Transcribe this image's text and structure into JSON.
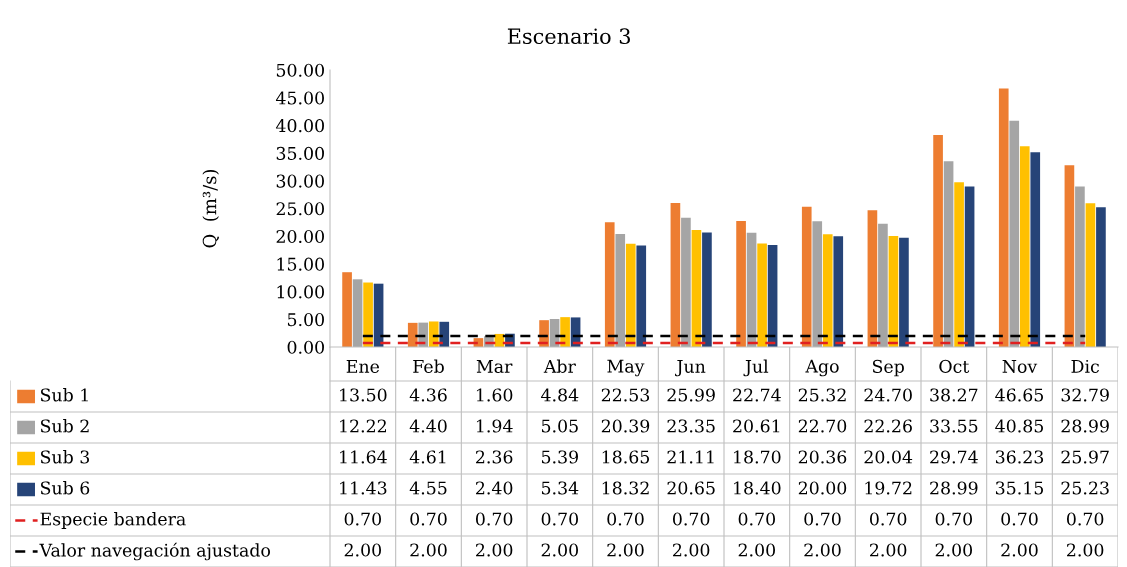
{
  "chart_data": {
    "type": "bar",
    "title": "Escenario 3",
    "ylabel": "Q  (m³/s)",
    "categories": [
      "Ene",
      "Feb",
      "Mar",
      "Abr",
      "May",
      "Jun",
      "Jul",
      "Ago",
      "Sep",
      "Oct",
      "Nov",
      "Dic"
    ],
    "series": [
      {
        "name": "Sub 1",
        "color": "#ed7d31",
        "values": [
          13.5,
          4.36,
          1.6,
          4.84,
          22.53,
          25.99,
          22.74,
          25.32,
          24.7,
          38.27,
          46.65,
          32.79
        ],
        "value_labels": [
          "13.50",
          "4.36",
          "1.60",
          "4.84",
          "22.53",
          "25.99",
          "22.74",
          "25.32",
          "24.70",
          "38.27",
          "46.65",
          "32.79"
        ]
      },
      {
        "name": "Sub 2",
        "color": "#a5a5a5",
        "values": [
          12.22,
          4.4,
          1.94,
          5.05,
          20.39,
          23.35,
          20.61,
          22.7,
          22.26,
          33.55,
          40.85,
          28.99
        ],
        "value_labels": [
          "12.22",
          "4.40",
          "1.94",
          "5.05",
          "20.39",
          "23.35",
          "20.61",
          "22.70",
          "22.26",
          "33.55",
          "40.85",
          "28.99"
        ]
      },
      {
        "name": "Sub 3",
        "color": "#ffc000",
        "values": [
          11.64,
          4.61,
          2.36,
          5.39,
          18.65,
          21.11,
          18.7,
          20.36,
          20.04,
          29.74,
          36.23,
          25.97
        ],
        "value_labels": [
          "11.64",
          "4.61",
          "2.36",
          "5.39",
          "18.65",
          "21.11",
          "18.70",
          "20.36",
          "20.04",
          "29.74",
          "36.23",
          "25.97"
        ]
      },
      {
        "name": "Sub 6",
        "color": "#264478",
        "values": [
          11.43,
          4.55,
          2.4,
          5.34,
          18.32,
          20.65,
          18.4,
          20.0,
          19.72,
          28.99,
          35.15,
          25.23
        ],
        "value_labels": [
          "11.43",
          "4.55",
          "2.40",
          "5.34",
          "18.32",
          "20.65",
          "18.40",
          "20.00",
          "19.72",
          "28.99",
          "35.15",
          "25.23"
        ]
      },
      {
        "name": "Especie bandera",
        "type": "line",
        "line_style": "dashed",
        "color": "#e02020",
        "values": [
          0.7,
          0.7,
          0.7,
          0.7,
          0.7,
          0.7,
          0.7,
          0.7,
          0.7,
          0.7,
          0.7,
          0.7
        ],
        "value_labels": [
          "0.70",
          "0.70",
          "0.70",
          "0.70",
          "0.70",
          "0.70",
          "0.70",
          "0.70",
          "0.70",
          "0.70",
          "0.70",
          "0.70"
        ]
      },
      {
        "name": "Valor navegación ajustado",
        "type": "line",
        "line_style": "dashed",
        "color": "#000000",
        "values": [
          2.0,
          2.0,
          2.0,
          2.0,
          2.0,
          2.0,
          2.0,
          2.0,
          2.0,
          2.0,
          2.0,
          2.0
        ],
        "value_labels": [
          "2.00",
          "2.00",
          "2.00",
          "2.00",
          "2.00",
          "2.00",
          "2.00",
          "2.00",
          "2.00",
          "2.00",
          "2.00",
          "2.00"
        ]
      }
    ],
    "ylim": [
      0,
      50
    ],
    "yticks": [
      {
        "value": 0,
        "label": "0.00"
      },
      {
        "value": 5,
        "label": "5.00"
      },
      {
        "value": 10,
        "label": "10.00"
      },
      {
        "value": 15,
        "label": "15.00"
      },
      {
        "value": 20,
        "label": "20.00"
      },
      {
        "value": 25,
        "label": "25.00"
      },
      {
        "value": 30,
        "label": "30.00"
      },
      {
        "value": 35,
        "label": "35.00"
      },
      {
        "value": 40,
        "label": "40.00"
      },
      {
        "value": 45,
        "label": "45.00"
      },
      {
        "value": 50,
        "label": "50.00"
      }
    ],
    "grid": false,
    "legend": "bottom",
    "marker": "none"
  }
}
